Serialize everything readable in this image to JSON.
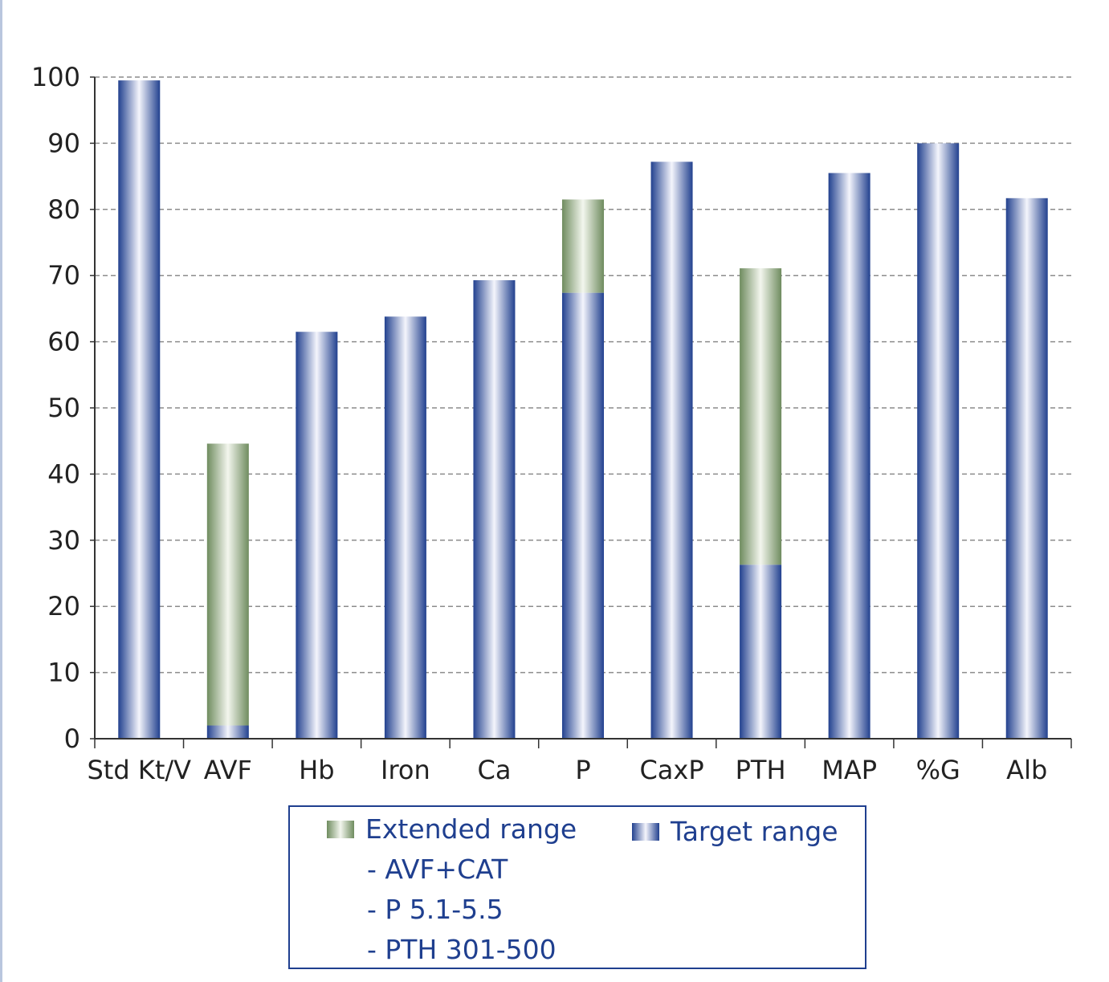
{
  "chart_data": {
    "type": "bar",
    "stacked": true,
    "categories": [
      "Std Kt/V",
      "AVF",
      "Hb",
      "Iron",
      "Ca",
      "P",
      "CaxP",
      "PTH",
      "MAP",
      "%G",
      "Alb"
    ],
    "series": [
      {
        "name": "Target range",
        "values": [
          99.5,
          2,
          61.5,
          63.8,
          69.3,
          67.4,
          87.2,
          26.3,
          85.5,
          90,
          81.7
        ],
        "color": "#22418f"
      },
      {
        "name": "Extended range",
        "values": [
          0,
          42.6,
          0,
          0,
          0,
          14.1,
          0,
          44.8,
          0,
          0,
          0
        ],
        "color": "#6f8c5f"
      }
    ],
    "ylim": [
      0,
      100
    ],
    "yticks": [
      0,
      10,
      20,
      30,
      40,
      50,
      60,
      70,
      80,
      90,
      100
    ],
    "grid": "horizontal-dashed",
    "legend_position": "bottom"
  },
  "legend": {
    "extended_label": "Extended range",
    "extended_notes": [
      "- AVF+CAT",
      "- P 5.1-5.5",
      "- PTH 301-500"
    ],
    "target_label": "Target range"
  }
}
